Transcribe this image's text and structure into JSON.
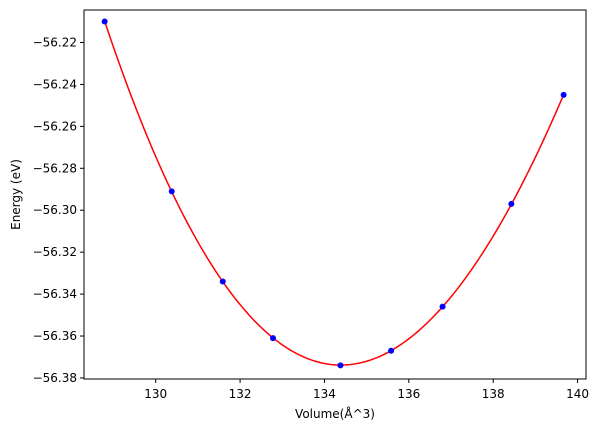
{
  "chart_data": {
    "type": "scatter",
    "title": "",
    "xlabel": "Volume(Å^3)",
    "ylabel": "Energy (eV)",
    "xlim": [
      128.3,
      140.2
    ],
    "ylim": [
      -56.3805,
      -56.2045
    ],
    "xticks": [
      130,
      132,
      134,
      136,
      138,
      140
    ],
    "yticks": [
      -56.38,
      -56.36,
      -56.34,
      -56.32,
      -56.3,
      -56.28,
      -56.26,
      -56.24,
      -56.22
    ],
    "ytick_labels": [
      "−56.38",
      "−56.36",
      "−56.34",
      "−56.32",
      "−56.30",
      "−56.28",
      "−56.26",
      "−56.24",
      "−56.22"
    ],
    "grid": false,
    "legend": "none",
    "series": [
      {
        "kind": "points",
        "color": "#0000ff",
        "x": [
          128.79,
          130.38,
          131.59,
          132.78,
          134.38,
          135.58,
          136.8,
          138.43,
          139.67
        ],
        "y": [
          -56.21,
          -56.291,
          -56.334,
          -56.361,
          -56.374,
          -56.367,
          -56.346,
          -56.297,
          -56.245
        ]
      },
      {
        "kind": "fit-curve",
        "color": "#ff0000",
        "x_range": [
          128.79,
          139.67
        ]
      }
    ]
  }
}
